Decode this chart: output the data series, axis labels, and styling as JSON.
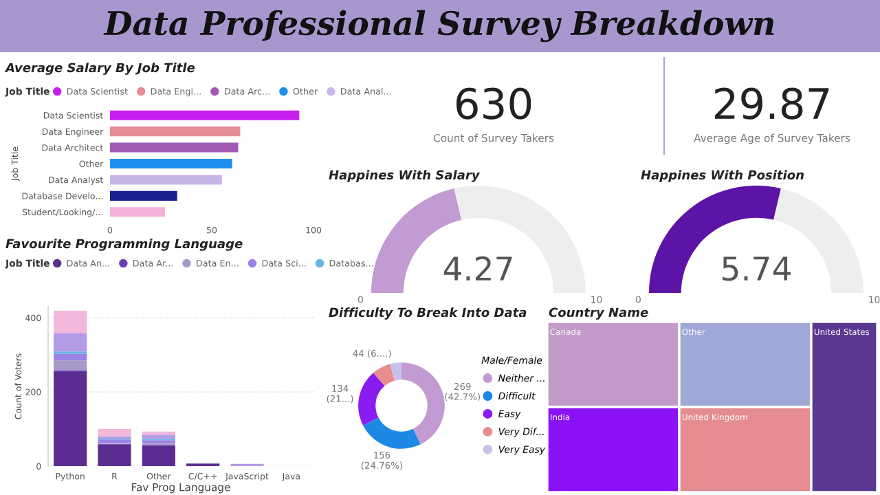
{
  "chart_data": [
    {
      "type": "other",
      "title": "Data Professional Survey Breakdown"
    },
    {
      "type": "bar",
      "title": "Average Salary By Job Title",
      "orientation": "horizontal",
      "legend": "top",
      "legend_title": "Job Title",
      "ylabel": "Job Title",
      "grid": false,
      "categories": [
        "Data Scientist",
        "Data Engineer",
        "Data Architect",
        "Other",
        "Data Analyst",
        "Database Develo...",
        "Student/Looking/..."
      ],
      "xlim": [
        0,
        100
      ],
      "xticks": [
        0,
        50,
        100
      ],
      "series": [
        {
          "name": "Data Scientist",
          "color": "#c61ff0",
          "values": [
            93,
            null,
            null,
            null,
            null,
            null,
            null
          ]
        },
        {
          "name": "Data Engi...",
          "color": "#e48d94",
          "values": [
            null,
            64,
            null,
            null,
            null,
            null,
            null
          ]
        },
        {
          "name": "Data Arc...",
          "color": "#a25bb5",
          "values": [
            null,
            null,
            63,
            null,
            null,
            null,
            null
          ]
        },
        {
          "name": "Other",
          "color": "#1f8fef",
          "values": [
            null,
            null,
            null,
            60,
            null,
            null,
            null
          ]
        },
        {
          "name": "Data Anal...",
          "color": "#c7b5e6",
          "values": [
            null,
            null,
            null,
            null,
            55,
            null,
            null
          ]
        },
        {
          "color": "#1a1f8f",
          "values": [
            null,
            null,
            null,
            null,
            null,
            33,
            null
          ]
        },
        {
          "color": "#f3b1d8",
          "values": [
            null,
            null,
            null,
            null,
            null,
            null,
            27
          ]
        }
      ]
    },
    {
      "type": "bar",
      "title": "Favourite Programming Language",
      "stacked": true,
      "legend": "top",
      "legend_title": "Job Title",
      "xlabel": "Fav Prog Language",
      "ylabel": "Count of Voters",
      "grid": "y",
      "categories": [
        "Python",
        "R",
        "Other",
        "C/C++",
        "JavaScript",
        "Java"
      ],
      "ylim": [
        0,
        430
      ],
      "yticks": [
        0,
        200,
        400
      ],
      "series": [
        {
          "name": "Data An...",
          "color": "#5b2d90",
          "values": [
            254,
            59,
            56,
            7,
            null,
            null
          ]
        },
        {
          "name": "Data Ar...",
          "color": "#6b3fb0",
          "values": [
            4,
            1,
            1,
            null,
            null,
            null
          ]
        },
        {
          "name": "Data En...",
          "color": "#a89ac8",
          "values": [
            27,
            2,
            5,
            null,
            null,
            null
          ]
        },
        {
          "name": "Data Sci...",
          "color": "#9d82e8",
          "values": [
            18,
            10,
            8,
            null,
            null,
            null
          ]
        },
        {
          "name": "Databas...",
          "color": "#62b6e4",
          "values": [
            6,
            2,
            3,
            null,
            null,
            null
          ]
        },
        {
          "color": "#b59ae6",
          "values": [
            50,
            6,
            12,
            null,
            6,
            null
          ]
        },
        {
          "color": "#f1b8dc",
          "values": [
            60,
            20,
            8,
            null,
            null,
            null
          ]
        }
      ]
    },
    {
      "type": "other",
      "annotations": [
        "630",
        "Count of Survey Takers"
      ]
    },
    {
      "type": "other",
      "annotations": [
        "29.87",
        "Average Age of Survey Takers"
      ]
    },
    {
      "type": "donut",
      "title": "Happines With Salary",
      "categories": [
        null,
        null
      ],
      "values": [
        4.27,
        5.73
      ],
      "colors": [
        "#c39bd3",
        "#eeeeee"
      ],
      "value_labels": [
        "4.27",
        null
      ],
      "annotations": [
        "0",
        "10"
      ]
    },
    {
      "type": "donut",
      "title": "Happines With Position",
      "categories": [
        null,
        null
      ],
      "values": [
        5.74,
        4.26
      ],
      "colors": [
        "#5c14a6",
        "#eeeeee"
      ],
      "value_labels": [
        "5.74",
        null
      ],
      "annotations": [
        "0",
        "10"
      ]
    },
    {
      "type": "donut",
      "title": "Difficulty To Break Into Data",
      "legend": "right",
      "legend_title": "Male/Female",
      "categories": [
        "Neither ...",
        "Difficult",
        "Easy",
        "Very Dif...",
        "Very Easy"
      ],
      "values": [
        269,
        156,
        134,
        44,
        27
      ],
      "colors": [
        "#c39bd3",
        "#1e88e5",
        "#8a1cf0",
        "#e88c8c",
        "#c9c0ea"
      ],
      "value_labels": [
        "269\n(42.7%)",
        "156\n(24.76%)",
        "134\n(21...)",
        "44 (6....)",
        null
      ]
    },
    {
      "type": "other",
      "title": "Country Name",
      "categories": [
        "Canada",
        "Other",
        "India",
        "United Kingdom",
        "United States"
      ],
      "colors": [
        "#c39bc8",
        "#a0a8d8",
        "#8a12f5",
        "#e48c90",
        "#5a3891"
      ]
    }
  ]
}
